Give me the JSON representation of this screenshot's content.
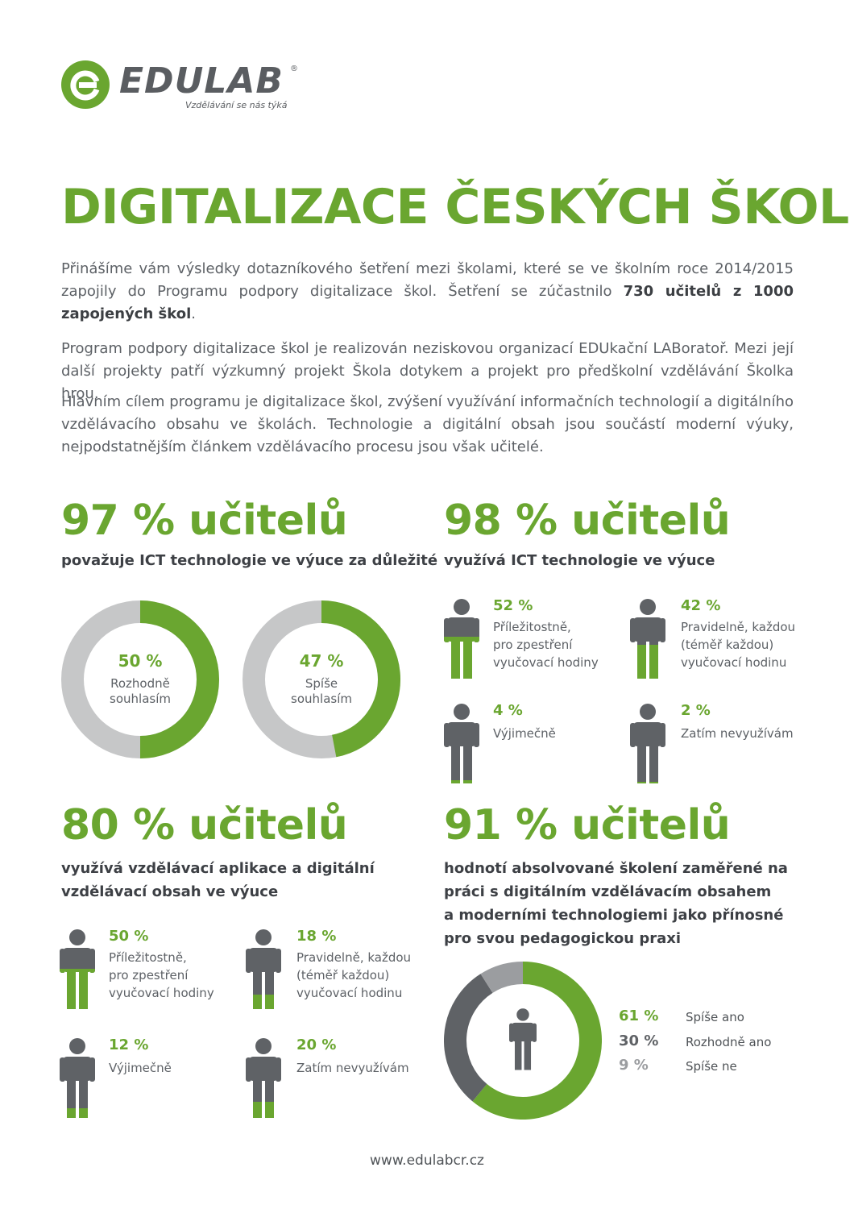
{
  "logo": {
    "name": "EDULAB",
    "reg": "®",
    "tagline": "Vzdělávání se nás týká"
  },
  "title": "DIGITALIZACE ČESKÝCH ŠKOL",
  "intro": {
    "p1_before": "Přinášíme vám výsledky dotazníkového šetření mezi školami, které se ve školním roce 2014/2015 zapojily do Programu podpory digitalizace škol. Šetření se zúčastnilo ",
    "p1_bold": "730 učitelů z 1000 zapojených škol",
    "p1_after": ".",
    "p2": "Program podpory digitalizace škol je realizován neziskovou organizací EDUkační LABoratoř. Mezi její další projekty patří výzkumný projekt Škola dotykem a projekt pro předškolní vzdělávání Školka hrou.",
    "p3": "Hlavním cílem programu je digitalizace škol, zvýšení využívání informačních technologií a digitálního vzdělávacího obsahu ve školách. Technologie a digitální obsah jsou součástí moderní výuky, nejpodstatnějším článkem vzdělávacího procesu jsou však učitelé."
  },
  "colors": {
    "green": "#6aa630",
    "dark": "#5f6266",
    "light": "#c6c7c8",
    "mid": "#9b9da0"
  },
  "section1": {
    "headline": "97 % učitelů",
    "subtitle": "považuje ICT technologie ve výuce za důležité",
    "donuts": [
      {
        "pct_label": "50 %",
        "label1": "Rozhodně",
        "label2": "souhlasím",
        "value": 50
      },
      {
        "pct_label": "47 %",
        "label1": "Spíše",
        "label2": "souhlasím",
        "value": 47
      }
    ]
  },
  "section2": {
    "headline": "98 % učitelů",
    "subtitle": "využívá ICT technologie ve výuce",
    "stats": [
      {
        "pct_label": "52 %",
        "lines": [
          "Příležitostně,",
          "pro zpestření",
          "vyučovací hodiny"
        ],
        "value": 52
      },
      {
        "pct_label": "42 %",
        "lines": [
          "Pravidelně, každou",
          "(téměř každou)",
          "vyučovací hodinu"
        ],
        "value": 42
      },
      {
        "pct_label": "4 %",
        "lines": [
          "Výjimečně"
        ],
        "value": 4
      },
      {
        "pct_label": "2 %",
        "lines": [
          "Zatím nevyužívám"
        ],
        "value": 2
      }
    ]
  },
  "section3": {
    "headline": "80 % učitelů",
    "subtitle_line1": "využívá vzdělávací aplikace a digitální",
    "subtitle_line2": "vzdělávací obsah ve výuce",
    "stats": [
      {
        "pct_label": "50 %",
        "lines": [
          "Příležitostně,",
          "pro zpestření",
          "vyučovací hodiny"
        ],
        "value": 50
      },
      {
        "pct_label": "18 %",
        "lines": [
          "Pravidelně, každou",
          "(téměř každou)",
          "vyučovací hodinu"
        ],
        "value": 18
      },
      {
        "pct_label": "12 %",
        "lines": [
          "Výjimečně"
        ],
        "value": 12
      },
      {
        "pct_label": "20 %",
        "lines": [
          "Zatím nevyužívám"
        ],
        "value": 20
      }
    ]
  },
  "section4": {
    "headline": "91 % učitelů",
    "subtitle_lines": [
      "hodnotí absolvované školení zaměřené na",
      "práci s digitálním vzdělávacím obsahem",
      "a moderními technologiemi jako přínosné",
      "pro svou pedagogickou praxi"
    ],
    "legend": [
      {
        "pct_label": "61 %",
        "label": "Spíše ano",
        "value": 61,
        "color": "#6aa630"
      },
      {
        "pct_label": "30 %",
        "label": "Rozhodně ano",
        "value": 30,
        "color": "#5f6266"
      },
      {
        "pct_label": "9 %",
        "label": "Spíše ne",
        "value": 9,
        "color": "#9b9da0"
      }
    ]
  },
  "footer": "www.edulabcr.cz"
}
